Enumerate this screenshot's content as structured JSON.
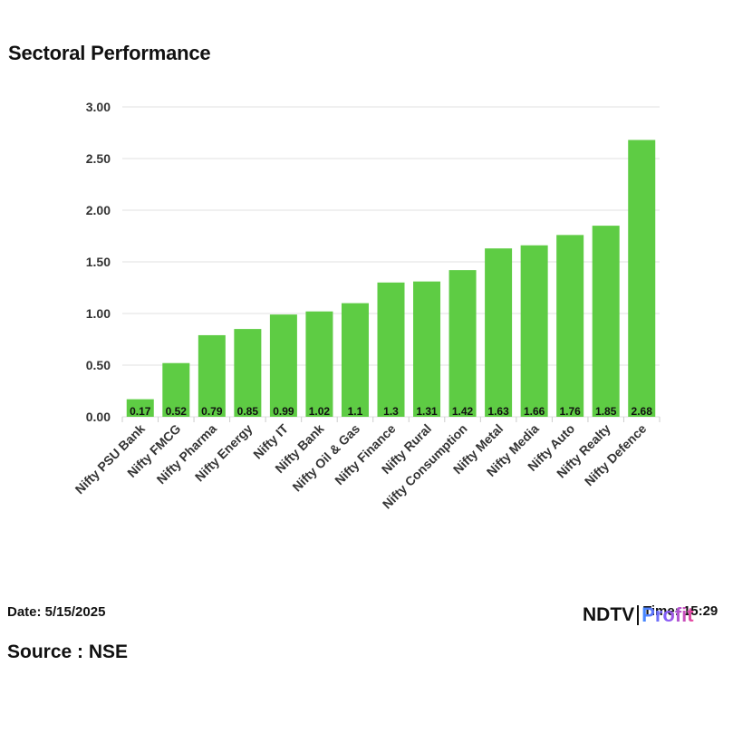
{
  "header": {
    "title": "Sectoral Performance"
  },
  "footer": {
    "date_text": "Date: 5/15/2025",
    "time_text": "Time: 15:29",
    "source_text": "Source : NSE",
    "logo_left": "NDTV",
    "logo_right": "Profit"
  },
  "colors": {
    "bar": "#5ecc44",
    "grid": "#e0e0e0"
  },
  "chart_data": {
    "type": "bar",
    "title": "Sectoral Performance",
    "xlabel": "",
    "ylabel": "",
    "ylim": [
      0,
      3
    ],
    "yticks": [
      "0.00",
      "0.50",
      "1.00",
      "1.50",
      "2.00",
      "2.50",
      "3.00"
    ],
    "ytick_values": [
      0,
      0.5,
      1,
      1.5,
      2,
      2.5,
      3
    ],
    "grid": true,
    "categories": [
      "Nifty PSU Bank",
      "Nifty FMCG",
      "Nifty Pharma",
      "Nifty Energy",
      "Nifty IT",
      "Nifty Bank",
      "Nifty Oil & Gas",
      "Nifty Finance",
      "Nifty Rural",
      "Nifty Consumption",
      "Nifty Metal",
      "Nifty Media",
      "Nifty Auto",
      "Nifty Realty",
      "Nifty Defence"
    ],
    "values": [
      0.17,
      0.52,
      0.79,
      0.85,
      0.99,
      1.02,
      1.1,
      1.3,
      1.31,
      1.42,
      1.63,
      1.66,
      1.76,
      1.85,
      2.68
    ],
    "value_labels": [
      "0.17",
      "0.52",
      "0.79",
      "0.85",
      "0.99",
      "1.02",
      "1.1",
      "1.3",
      "1.31",
      "1.42",
      "1.63",
      "1.66",
      "1.76",
      "1.85",
      "2.68"
    ]
  }
}
